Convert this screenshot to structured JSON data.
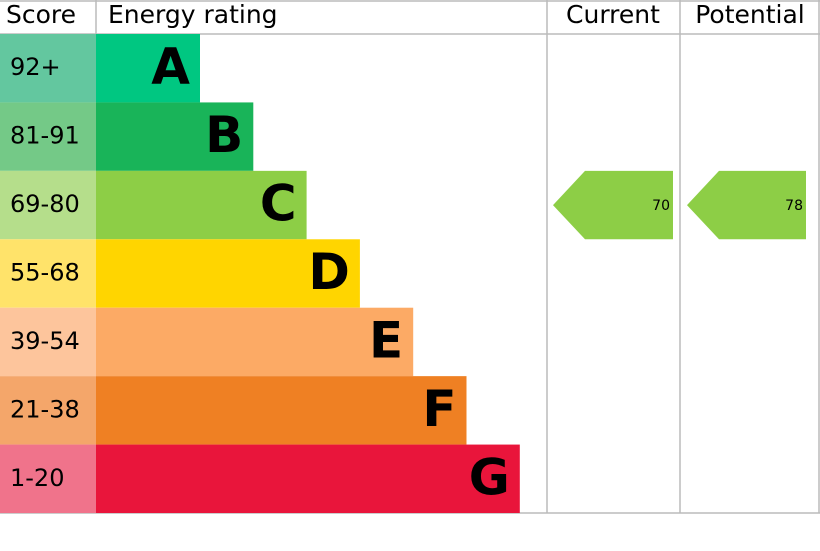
{
  "header": {
    "score": "Score",
    "rating": "Energy rating",
    "current": "Current",
    "potential": "Potential"
  },
  "bands": [
    {
      "score": "92+",
      "letter": "A",
      "color": "#00c781",
      "score_color": "#63c79f"
    },
    {
      "score": "81-91",
      "letter": "B",
      "color": "#19b459",
      "score_color": "#74c987"
    },
    {
      "score": "69-80",
      "letter": "C",
      "color": "#8dce46",
      "score_color": "#b5de8b"
    },
    {
      "score": "55-68",
      "letter": "D",
      "color": "#ffd500",
      "score_color": "#ffe36a"
    },
    {
      "score": "39-54",
      "letter": "E",
      "color": "#fcaa65",
      "score_color": "#fdc59c"
    },
    {
      "score": "21-38",
      "letter": "F",
      "color": "#ef8023",
      "score_color": "#f4a66a"
    },
    {
      "score": "1-20",
      "letter": "G",
      "color": "#e9153b",
      "score_color": "#f0738b"
    }
  ],
  "current": {
    "value": 70,
    "color": "#8dce46"
  },
  "potential": {
    "value": 78,
    "color": "#8dce46"
  }
}
